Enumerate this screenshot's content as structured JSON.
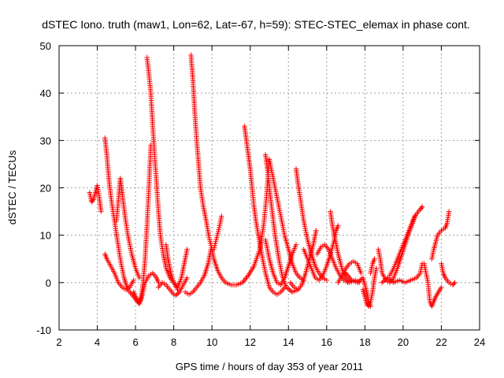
{
  "chart_data": {
    "type": "scatter",
    "title": "dSTEC Iono. truth (maw1, Lon=62, Lat=-67, h=59): STEC-STEC_elemax in phase cont.",
    "xlabel": "GPS time / hours of day 353 of year 2011",
    "ylabel": "dSTEC  / TECUs",
    "xlim": [
      2,
      24
    ],
    "ylim": [
      -10,
      50
    ],
    "xticks": [
      2,
      4,
      6,
      8,
      10,
      12,
      14,
      16,
      18,
      20,
      22,
      24
    ],
    "yticks": [
      -10,
      0,
      10,
      20,
      30,
      40,
      50
    ],
    "grid": true,
    "marker": "+",
    "color": "#ff0000",
    "series": [
      {
        "points": [
          [
            3.6,
            19
          ],
          [
            3.7,
            17
          ],
          [
            3.8,
            17.5
          ],
          [
            3.9,
            19
          ],
          [
            4.0,
            20.5
          ],
          [
            4.1,
            18
          ],
          [
            4.2,
            15
          ]
        ]
      },
      {
        "points": [
          [
            4.4,
            30.5
          ],
          [
            4.5,
            27
          ],
          [
            4.6,
            22
          ],
          [
            4.75,
            17
          ],
          [
            4.9,
            13
          ],
          [
            5.05,
            9
          ],
          [
            5.2,
            5
          ],
          [
            5.4,
            1
          ],
          [
            5.6,
            -1.5
          ],
          [
            5.8,
            -2.5
          ],
          [
            6.0,
            -3.5
          ],
          [
            6.1,
            -4
          ],
          [
            6.2,
            -4.5
          ],
          [
            6.3,
            -3.5
          ],
          [
            6.5,
            0
          ],
          [
            6.7,
            1.5
          ],
          [
            6.9,
            2
          ],
          [
            7.1,
            1
          ],
          [
            7.2,
            0
          ]
        ]
      },
      {
        "points": [
          [
            4.4,
            6
          ],
          [
            4.5,
            5
          ],
          [
            4.7,
            3.5
          ],
          [
            4.9,
            2
          ],
          [
            5.1,
            0
          ],
          [
            5.3,
            -1
          ],
          [
            5.5,
            -1.5
          ],
          [
            5.7,
            -1
          ],
          [
            5.9,
            0.5
          ]
        ]
      },
      {
        "points": [
          [
            5.0,
            13
          ],
          [
            5.1,
            17
          ],
          [
            5.2,
            22
          ],
          [
            5.3,
            19
          ],
          [
            5.45,
            14
          ],
          [
            5.6,
            10
          ],
          [
            5.8,
            6
          ],
          [
            6.0,
            3
          ],
          [
            6.2,
            1
          ]
        ]
      },
      {
        "points": [
          [
            5.9,
            -2
          ],
          [
            6.0,
            -3
          ],
          [
            6.2,
            -4
          ],
          [
            6.3,
            -3
          ],
          [
            6.4,
            0
          ],
          [
            6.5,
            5
          ],
          [
            6.6,
            12
          ],
          [
            6.7,
            20
          ],
          [
            6.8,
            29
          ]
        ]
      },
      {
        "points": [
          [
            6.6,
            47.5
          ],
          [
            6.7,
            44
          ],
          [
            6.8,
            40
          ],
          [
            6.9,
            33
          ],
          [
            7.0,
            27
          ],
          [
            7.1,
            21
          ],
          [
            7.2,
            15
          ],
          [
            7.3,
            10
          ],
          [
            7.45,
            6
          ],
          [
            7.6,
            3
          ],
          [
            7.8,
            1
          ],
          [
            8.0,
            0
          ],
          [
            8.2,
            -1.5
          ]
        ]
      },
      {
        "points": [
          [
            7.2,
            -1
          ],
          [
            7.4,
            0
          ],
          [
            7.6,
            -0.5
          ],
          [
            7.8,
            -1.5
          ],
          [
            8.0,
            -2.5
          ],
          [
            8.1,
            -2.7
          ],
          [
            8.3,
            -2
          ],
          [
            8.5,
            -0.5
          ],
          [
            8.7,
            1
          ]
        ]
      },
      {
        "points": [
          [
            7.6,
            8
          ],
          [
            7.7,
            5
          ],
          [
            7.85,
            2
          ],
          [
            8.0,
            0
          ],
          [
            8.2,
            -1
          ],
          [
            8.4,
            1
          ],
          [
            8.55,
            4
          ],
          [
            8.7,
            7
          ]
        ]
      },
      {
        "points": [
          [
            8.9,
            48
          ],
          [
            9.0,
            43
          ],
          [
            9.1,
            36
          ],
          [
            9.2,
            30
          ],
          [
            9.3,
            25
          ],
          [
            9.4,
            20
          ],
          [
            9.55,
            16
          ],
          [
            9.7,
            13
          ],
          [
            9.85,
            9.5
          ],
          [
            10.0,
            7
          ],
          [
            10.1,
            5
          ],
          [
            10.3,
            2.5
          ],
          [
            10.5,
            1
          ],
          [
            10.7,
            0
          ],
          [
            11.0,
            -0.5
          ],
          [
            11.3,
            -0.5
          ],
          [
            11.6,
            0
          ],
          [
            11.9,
            1.5
          ],
          [
            12.2,
            3.5
          ],
          [
            12.5,
            7
          ],
          [
            12.7,
            12
          ],
          [
            12.85,
            18
          ],
          [
            13.0,
            26
          ]
        ]
      },
      {
        "points": [
          [
            8.6,
            -2
          ],
          [
            8.8,
            -2.5
          ],
          [
            9.0,
            -2
          ],
          [
            9.2,
            -1
          ],
          [
            9.4,
            0
          ],
          [
            9.6,
            1.5
          ],
          [
            9.8,
            4
          ],
          [
            9.95,
            7
          ]
        ]
      },
      {
        "points": [
          [
            10.1,
            7
          ],
          [
            10.25,
            9.5
          ],
          [
            10.4,
            12
          ],
          [
            10.5,
            14
          ]
        ]
      },
      {
        "points": [
          [
            11.7,
            33
          ],
          [
            11.8,
            30
          ],
          [
            11.9,
            27
          ],
          [
            12.0,
            24
          ],
          [
            12.1,
            20
          ],
          [
            12.2,
            16
          ],
          [
            12.3,
            13
          ],
          [
            12.45,
            9.5
          ],
          [
            12.6,
            6
          ],
          [
            12.8,
            2
          ],
          [
            13.0,
            -1
          ],
          [
            13.2,
            -2
          ],
          [
            13.4,
            -2.5
          ],
          [
            13.6,
            -2
          ],
          [
            13.8,
            -1
          ]
        ]
      },
      {
        "points": [
          [
            12.8,
            27
          ],
          [
            12.9,
            24
          ],
          [
            13.0,
            20
          ],
          [
            13.15,
            15
          ],
          [
            13.3,
            10
          ],
          [
            13.5,
            5
          ],
          [
            13.7,
            1
          ],
          [
            13.9,
            -1
          ],
          [
            14.2,
            -2
          ],
          [
            14.5,
            -1.5
          ]
        ]
      },
      {
        "points": [
          [
            13.0,
            26
          ],
          [
            13.2,
            22
          ],
          [
            13.4,
            18
          ],
          [
            13.6,
            14
          ],
          [
            13.8,
            10
          ],
          [
            14.0,
            7
          ],
          [
            14.2,
            4
          ],
          [
            14.4,
            2
          ],
          [
            14.6,
            1
          ],
          [
            14.8,
            0.5
          ]
        ]
      },
      {
        "points": [
          [
            12.8,
            9
          ],
          [
            13.0,
            5
          ],
          [
            13.2,
            2
          ],
          [
            13.4,
            0
          ],
          [
            13.6,
            -0.5
          ],
          [
            13.8,
            1
          ],
          [
            14.0,
            3.5
          ],
          [
            14.2,
            6
          ],
          [
            14.4,
            8
          ]
        ]
      },
      {
        "points": [
          [
            14.4,
            24
          ],
          [
            14.5,
            21
          ],
          [
            14.65,
            17
          ],
          [
            14.8,
            13
          ],
          [
            15.0,
            9
          ],
          [
            15.2,
            6
          ],
          [
            15.4,
            3.5
          ],
          [
            15.6,
            2
          ],
          [
            15.8,
            1
          ],
          [
            16.0,
            0.5
          ]
        ]
      },
      {
        "points": [
          [
            14.1,
            0
          ],
          [
            14.3,
            -1
          ],
          [
            14.5,
            -1.5
          ],
          [
            14.7,
            -0.5
          ],
          [
            14.9,
            2
          ],
          [
            15.1,
            5
          ],
          [
            15.3,
            8
          ],
          [
            15.45,
            11
          ]
        ]
      },
      {
        "points": [
          [
            14.8,
            7
          ],
          [
            15.0,
            5
          ],
          [
            15.2,
            3
          ],
          [
            15.4,
            1
          ],
          [
            15.6,
            0.5
          ],
          [
            15.8,
            1.5
          ],
          [
            16.0,
            3.5
          ],
          [
            16.2,
            6
          ],
          [
            16.4,
            9
          ],
          [
            16.5,
            11
          ],
          [
            16.6,
            12
          ]
        ]
      },
      {
        "points": [
          [
            15.5,
            6
          ],
          [
            15.7,
            7.5
          ],
          [
            15.9,
            8
          ],
          [
            16.1,
            7
          ],
          [
            16.3,
            5
          ],
          [
            16.5,
            3
          ],
          [
            16.7,
            1.5
          ],
          [
            16.9,
            0.5
          ],
          [
            17.1,
            0
          ]
        ]
      },
      {
        "points": [
          [
            16.2,
            15
          ],
          [
            16.3,
            12
          ],
          [
            16.45,
            9
          ],
          [
            16.6,
            6
          ],
          [
            16.8,
            3
          ],
          [
            17.0,
            1
          ],
          [
            17.2,
            0
          ],
          [
            17.5,
            0.5
          ],
          [
            17.7,
            0
          ]
        ]
      },
      {
        "points": [
          [
            16.6,
            0
          ],
          [
            16.8,
            1.5
          ],
          [
            17.0,
            3
          ],
          [
            17.2,
            4
          ],
          [
            17.4,
            4.5
          ],
          [
            17.6,
            4
          ],
          [
            17.8,
            2
          ]
        ]
      },
      {
        "points": [
          [
            17.0,
            2
          ],
          [
            17.3,
            0.5
          ],
          [
            17.6,
            0
          ],
          [
            17.9,
            1
          ],
          [
            18.1,
            -2
          ],
          [
            18.2,
            -4
          ],
          [
            18.3,
            -5
          ]
        ]
      },
      {
        "points": [
          [
            17.9,
            -1.5
          ],
          [
            18.0,
            -3
          ],
          [
            18.1,
            -4.5
          ],
          [
            18.2,
            -5
          ],
          [
            18.3,
            -4
          ],
          [
            18.4,
            -2
          ],
          [
            18.5,
            1
          ],
          [
            18.6,
            3
          ]
        ]
      },
      {
        "points": [
          [
            18.3,
            2
          ],
          [
            18.4,
            4
          ],
          [
            18.5,
            5
          ]
        ]
      },
      {
        "points": [
          [
            18.7,
            7
          ],
          [
            18.8,
            5
          ],
          [
            18.9,
            2
          ],
          [
            19.1,
            0.5
          ],
          [
            19.3,
            0
          ],
          [
            19.5,
            1
          ],
          [
            19.7,
            3
          ],
          [
            19.9,
            5.5
          ],
          [
            20.1,
            8
          ],
          [
            20.3,
            10.5
          ],
          [
            20.5,
            12.5
          ],
          [
            20.6,
            14
          ]
        ]
      },
      {
        "points": [
          [
            19.3,
            1.5
          ],
          [
            19.5,
            3
          ],
          [
            19.7,
            5
          ],
          [
            19.9,
            7
          ],
          [
            20.1,
            9
          ],
          [
            20.3,
            11
          ],
          [
            20.5,
            13
          ],
          [
            20.7,
            14.5
          ],
          [
            20.9,
            15.5
          ],
          [
            21.0,
            16
          ]
        ]
      },
      {
        "points": [
          [
            18.9,
            0
          ],
          [
            19.2,
            1
          ],
          [
            19.5,
            0
          ],
          [
            19.8,
            0.5
          ],
          [
            20.1,
            0
          ],
          [
            20.4,
            0.5
          ],
          [
            20.7,
            1
          ],
          [
            20.9,
            2
          ],
          [
            21.0,
            4
          ]
        ]
      },
      {
        "points": [
          [
            21.1,
            4
          ],
          [
            21.2,
            2
          ],
          [
            21.3,
            0
          ],
          [
            21.35,
            -2
          ],
          [
            21.4,
            -4
          ],
          [
            21.5,
            -5
          ],
          [
            21.6,
            -4
          ],
          [
            21.7,
            -3
          ],
          [
            21.85,
            -2
          ],
          [
            22.0,
            -1
          ]
        ]
      },
      {
        "points": [
          [
            21.5,
            5
          ],
          [
            21.6,
            7
          ],
          [
            21.7,
            8.5
          ],
          [
            21.8,
            10
          ],
          [
            22.0,
            11
          ],
          [
            22.2,
            11.5
          ],
          [
            22.3,
            12.5
          ],
          [
            22.4,
            15
          ]
        ]
      },
      {
        "points": [
          [
            22.0,
            4
          ],
          [
            22.1,
            2
          ],
          [
            22.2,
            1
          ],
          [
            22.4,
            0
          ],
          [
            22.6,
            -0.5
          ],
          [
            22.7,
            0
          ]
        ]
      }
    ]
  }
}
